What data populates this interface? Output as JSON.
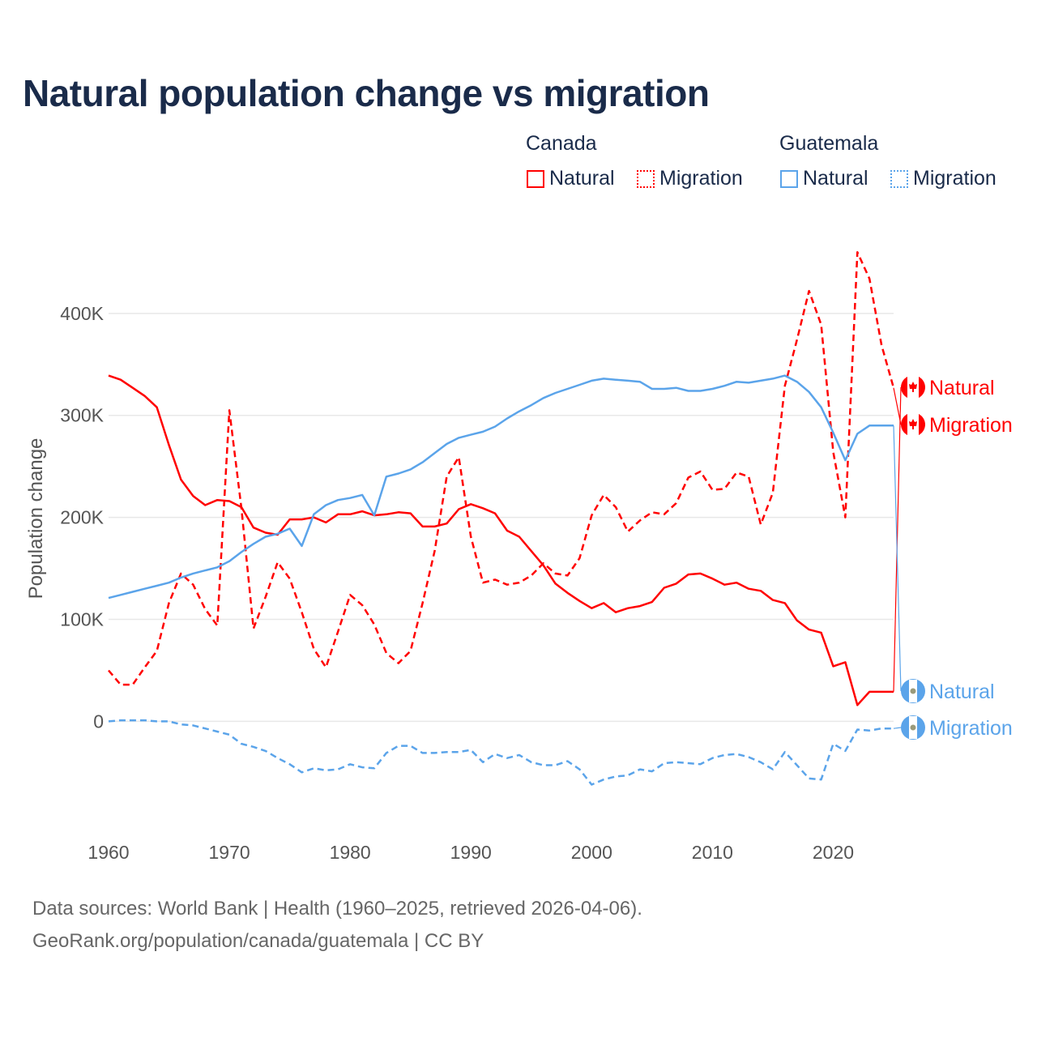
{
  "title": "Natural population change vs migration",
  "legend": {
    "groups": [
      {
        "name": "Canada",
        "items": [
          "Natural",
          "Migration"
        ],
        "color": "#ff0000"
      },
      {
        "name": "Guatemala",
        "items": [
          "Natural",
          "Migration"
        ],
        "color": "#5ba4ea"
      }
    ]
  },
  "footer": {
    "line1": "Data sources: World Bank | Health (1960–2025, retrieved 2026-04-06).",
    "line2": "GeoRank.org/population/canada/guatemala | CC BY"
  },
  "chart_data": {
    "type": "line",
    "title": "Natural population change vs migration",
    "xlabel": "",
    "ylabel": "Population change",
    "x_start": 1960,
    "x_end": 2025,
    "xlim": [
      1960,
      2025
    ],
    "ylim": [
      -95000,
      465000
    ],
    "xticks": [
      1960,
      1970,
      1980,
      1990,
      2000,
      2010,
      2020
    ],
    "xtick_labels": [
      "1960",
      "1970",
      "1980",
      "1990",
      "2000",
      "2010",
      "2020"
    ],
    "yticks": [
      0,
      100000,
      200000,
      300000,
      400000
    ],
    "ytick_labels": [
      "0",
      "100K",
      "200K",
      "300K",
      "400K"
    ],
    "grid": true,
    "legend_position": "top-right",
    "series": [
      {
        "name": "Canada Natural",
        "country": "Canada",
        "kind": "Natural",
        "color": "#ff0000",
        "dash": "solid",
        "end_label": "Natural",
        "values_k": [
          339,
          335,
          327,
          319,
          308,
          271,
          237,
          221,
          212,
          217,
          216,
          210,
          190,
          185,
          183,
          198,
          198,
          200,
          195,
          203,
          203,
          206,
          202,
          203,
          205,
          204,
          191,
          191,
          194,
          208,
          213,
          209,
          204,
          187,
          181,
          167,
          153,
          135,
          126,
          118,
          111,
          116,
          107,
          111,
          113,
          117,
          131,
          135,
          144,
          145,
          140,
          134,
          136,
          130,
          128,
          119,
          116,
          99,
          90,
          87,
          54,
          58,
          16,
          29,
          29,
          29
        ]
      },
      {
        "name": "Canada Migration",
        "country": "Canada",
        "kind": "Migration",
        "color": "#ff0000",
        "dash": "dashed",
        "end_label": "Migration",
        "values_k": [
          50,
          36,
          36,
          53,
          69,
          116,
          145,
          134,
          110,
          94,
          305,
          209,
          91,
          122,
          156,
          140,
          107,
          71,
          53,
          88,
          124,
          114,
          95,
          67,
          57,
          69,
          116,
          167,
          240,
          259,
          181,
          136,
          139,
          134,
          136,
          143,
          155,
          145,
          143,
          160,
          202,
          222,
          210,
          186,
          197,
          205,
          203,
          214,
          239,
          245,
          227,
          228,
          244,
          240,
          193,
          224,
          329,
          374,
          422,
          389,
          264,
          200,
          460,
          434,
          369,
          327
        ]
      },
      {
        "name": "Guatemala Natural",
        "country": "Guatemala",
        "kind": "Natural",
        "color": "#5ba4ea",
        "dash": "solid",
        "end_label": "Natural",
        "values_k": [
          121,
          124,
          127,
          130,
          133,
          136,
          141,
          145,
          148,
          151,
          157,
          166,
          174,
          181,
          184,
          189,
          172,
          203,
          212,
          217,
          219,
          222,
          202,
          240,
          243,
          247,
          254,
          263,
          272,
          278,
          281,
          284,
          289,
          297,
          304,
          310,
          317,
          322,
          326,
          330,
          334,
          336,
          335,
          334,
          333,
          326,
          326,
          327,
          324,
          324,
          326,
          329,
          333,
          332,
          334,
          336,
          339,
          333,
          323,
          308,
          283,
          256,
          282,
          290,
          290,
          290
        ]
      },
      {
        "name": "Guatemala Migration",
        "country": "Guatemala",
        "kind": "Migration",
        "color": "#5ba4ea",
        "dash": "dashed",
        "end_label": "Migration",
        "values_k": [
          0,
          1,
          1,
          1,
          0,
          0,
          -3,
          -4,
          -7,
          -10,
          -13,
          -22,
          -25,
          -29,
          -36,
          -42,
          -50,
          -46,
          -48,
          -47,
          -42,
          -45,
          -46,
          -31,
          -24,
          -24,
          -31,
          -31,
          -30,
          -30,
          -28,
          -40,
          -32,
          -36,
          -33,
          -40,
          -43,
          -43,
          -39,
          -47,
          -62,
          -57,
          -54,
          -53,
          -47,
          -49,
          -41,
          -40,
          -41,
          -42,
          -36,
          -33,
          -32,
          -35,
          -40,
          -47,
          -30,
          -43,
          -56,
          -57,
          -22,
          -29,
          -8,
          -9,
          -7,
          -7
        ]
      }
    ]
  }
}
